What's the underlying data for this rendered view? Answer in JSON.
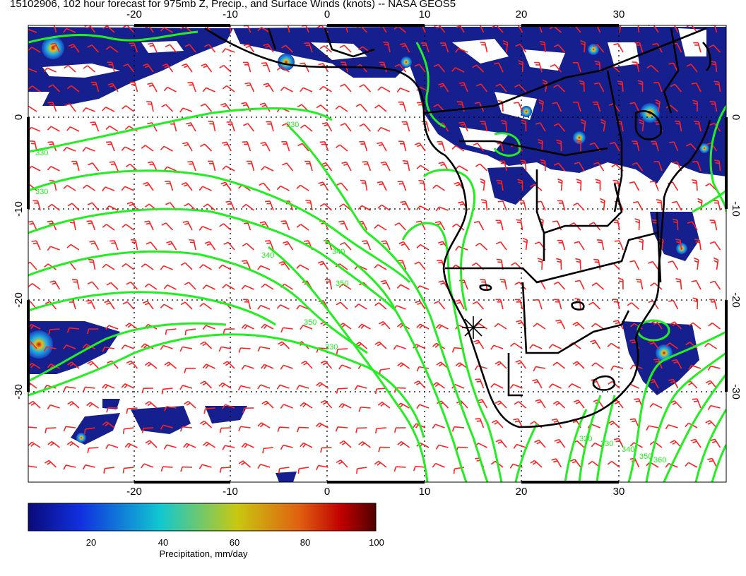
{
  "title": "15102906, 102 hour forecast for 975mb Z, Precip., and Surface Winds (knots) -- NASA GEOS5",
  "map": {
    "lon_range": [
      -30,
      40
    ],
    "lat_range": [
      -40,
      10
    ],
    "lon_ticks": [
      "-20",
      "-10",
      "0",
      "10",
      "20",
      "30"
    ],
    "lat_ticks": [
      "0",
      "-10",
      "-20",
      "-30"
    ],
    "contour_labels": [
      "330",
      "330",
      "330",
      "340",
      "340",
      "350",
      "350",
      "330",
      "320",
      "330",
      "340",
      "350",
      "360"
    ],
    "colors": {
      "wind_barbs": "#ff2020",
      "contours": "#22ee22",
      "coastline": "#000000",
      "grid": "#000000"
    },
    "marker": "asterisk"
  },
  "colorbar": {
    "ticks": [
      "20",
      "40",
      "60",
      "80",
      "100"
    ],
    "label": "Precipitation, mm/day",
    "colors": [
      "#0a0a7a",
      "#1040e0",
      "#10c8c8",
      "#c8c810",
      "#e06010",
      "#c00000",
      "#600000"
    ]
  }
}
